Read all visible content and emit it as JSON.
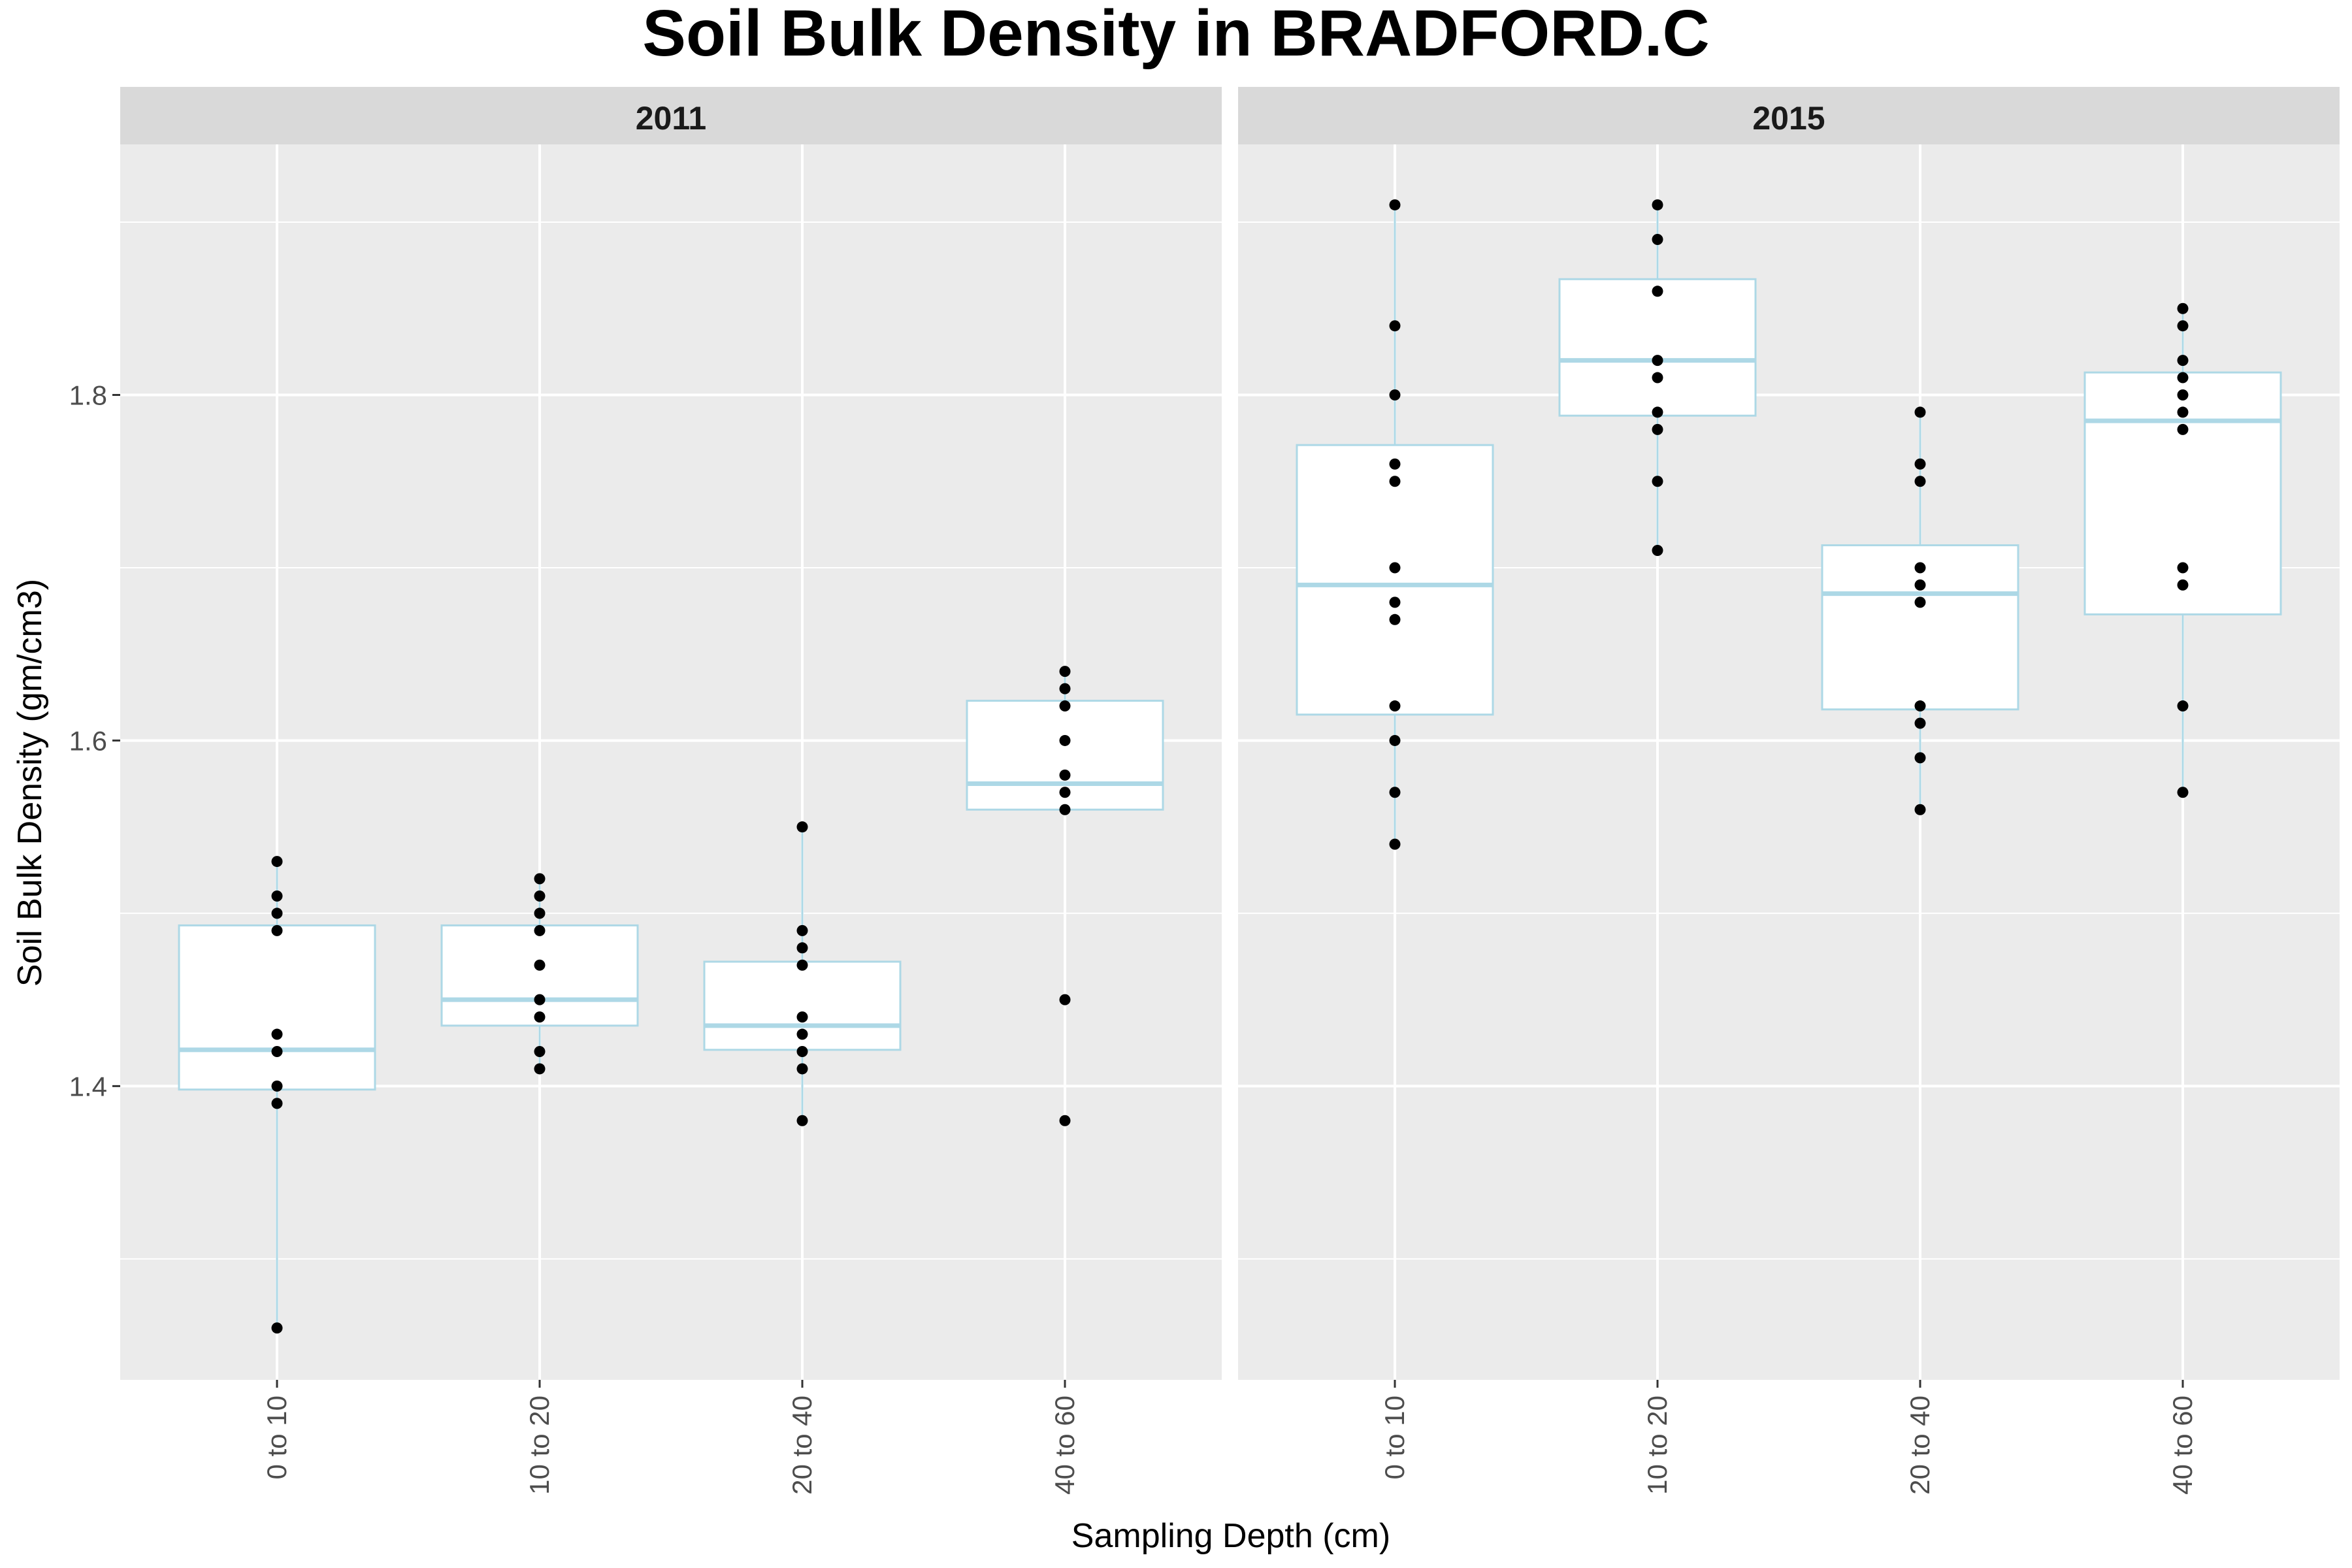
{
  "chart_data": {
    "type": "box",
    "title": "Soil Bulk Density in BRADFORD.C",
    "xlabel": "Sampling Depth (cm)",
    "ylabel": "Soil Bulk Density (gm/cm3)",
    "categories": [
      "0 to 10",
      "10 to 20",
      "20 to 40",
      "40 to 60"
    ],
    "ylim": [
      1.23,
      1.945
    ],
    "y_ticks": [
      1.4,
      1.6,
      1.8
    ],
    "y_tick_labels": [
      "1.4",
      "1.6",
      "1.8"
    ],
    "y_minor_ticks": [
      1.3,
      1.5,
      1.7,
      1.9
    ],
    "grid": true,
    "legend": "none",
    "box_color": "#add8e6",
    "point_color": "#000000",
    "panel_background": "#ebebeb",
    "strip_background": "#d9d9d9",
    "panels": [
      {
        "label": "2011",
        "groups": [
          {
            "category": "0 to 10",
            "box": {
              "lower_whisker": 1.26,
              "q1": 1.398,
              "median": 1.421,
              "q3": 1.493,
              "upper_whisker": 1.53
            },
            "points": [
              1.53,
              1.51,
              1.5,
              1.49,
              1.43,
              1.42,
              1.4,
              1.39,
              1.26
            ]
          },
          {
            "category": "10 to 20",
            "box": {
              "lower_whisker": 1.41,
              "q1": 1.435,
              "median": 1.45,
              "q3": 1.493,
              "upper_whisker": 1.52
            },
            "points": [
              1.52,
              1.51,
              1.5,
              1.49,
              1.47,
              1.45,
              1.44,
              1.42,
              1.41
            ]
          },
          {
            "category": "20 to 40",
            "box": {
              "lower_whisker": 1.38,
              "q1": 1.421,
              "median": 1.435,
              "q3": 1.472,
              "upper_whisker": 1.55
            },
            "points": [
              1.55,
              1.49,
              1.48,
              1.47,
              1.44,
              1.43,
              1.42,
              1.41,
              1.38
            ]
          },
          {
            "category": "40 to 60",
            "box": {
              "lower_whisker": 1.56,
              "q1": 1.56,
              "median": 1.575,
              "q3": 1.623,
              "upper_whisker": 1.64
            },
            "points": [
              1.64,
              1.63,
              1.62,
              1.6,
              1.58,
              1.57,
              1.56,
              1.45,
              1.38
            ]
          }
        ]
      },
      {
        "label": "2015",
        "groups": [
          {
            "category": "0 to 10",
            "box": {
              "lower_whisker": 1.54,
              "q1": 1.615,
              "median": 1.69,
              "q3": 1.771,
              "upper_whisker": 1.91
            },
            "points": [
              1.91,
              1.84,
              1.8,
              1.76,
              1.75,
              1.7,
              1.68,
              1.67,
              1.62,
              1.6,
              1.57,
              1.54
            ]
          },
          {
            "category": "10 to 20",
            "box": {
              "lower_whisker": 1.71,
              "q1": 1.788,
              "median": 1.82,
              "q3": 1.867,
              "upper_whisker": 1.91
            },
            "points": [
              1.91,
              1.89,
              1.86,
              1.82,
              1.81,
              1.79,
              1.78,
              1.75,
              1.71
            ]
          },
          {
            "category": "20 to 40",
            "box": {
              "lower_whisker": 1.56,
              "q1": 1.618,
              "median": 1.685,
              "q3": 1.713,
              "upper_whisker": 1.79
            },
            "points": [
              1.79,
              1.76,
              1.75,
              1.7,
              1.69,
              1.68,
              1.62,
              1.61,
              1.59,
              1.56
            ]
          },
          {
            "category": "40 to 60",
            "box": {
              "lower_whisker": 1.57,
              "q1": 1.673,
              "median": 1.785,
              "q3": 1.813,
              "upper_whisker": 1.85
            },
            "points": [
              1.85,
              1.84,
              1.82,
              1.81,
              1.8,
              1.79,
              1.78,
              1.7,
              1.69,
              1.62,
              1.57
            ]
          }
        ]
      }
    ]
  }
}
